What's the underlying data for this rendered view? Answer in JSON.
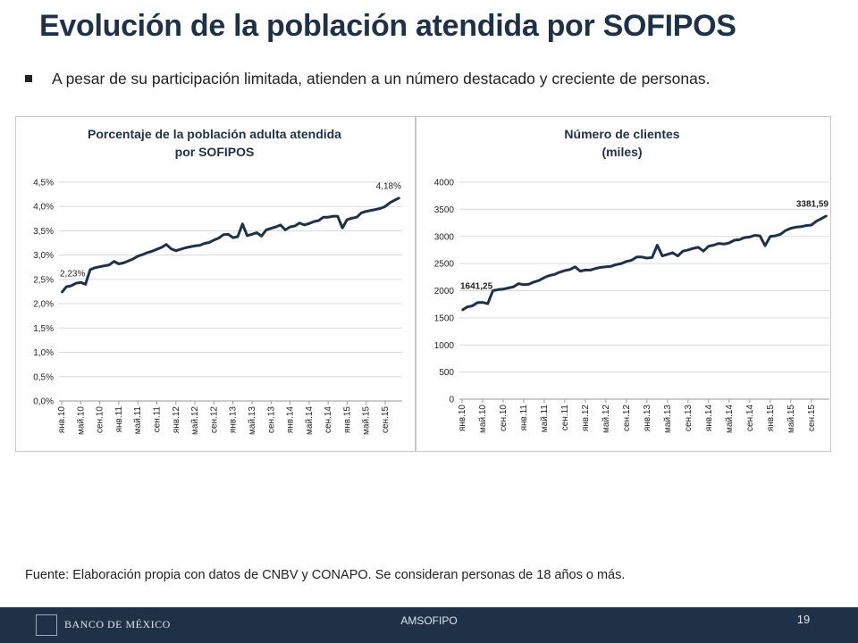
{
  "slide": {
    "title": "Evolución de la población atendida por SOFIPOS",
    "bullet": "A pesar de su participación limitada, atienden a un número destacado y creciente de personas.",
    "source": "Fuente: Elaboración propia con datos de CNBV y CONAPO. Se consideran personas de 18 años o más.",
    "footer_org": "BANCO DE MÉXICO",
    "footer_center": "AMSOFIPO",
    "page_number": "19"
  },
  "chart_data": [
    {
      "type": "line",
      "title": "Porcentaje de la población adulta atendida por SOFIPOS",
      "title_lines": [
        "Porcentaje de la población adulta atendida",
        "por SOFIPOS"
      ],
      "ylim": [
        0,
        4.5
      ],
      "yticks": [
        "0,0%",
        "0,5%",
        "1,0%",
        "1,5%",
        "2,0%",
        "2,5%",
        "3,0%",
        "3,5%",
        "4,0%",
        "4,5%"
      ],
      "xticks": [
        "янв.10",
        "май.10",
        "сен.10",
        "янв.11",
        "май.11",
        "сен.11",
        "янв.12",
        "май.12",
        "сен.12",
        "янв.13",
        "май.13",
        "сен.13",
        "янв.14",
        "май.14",
        "сен.14",
        "янв.15",
        "май.15",
        "сен.15"
      ],
      "annotations": [
        {
          "text": "2,23%",
          "index": 0
        },
        {
          "text": "4,18%",
          "index": 71
        }
      ],
      "series": [
        {
          "color": "#1f3147",
          "values": [
            2.23,
            2.35,
            2.37,
            2.42,
            2.44,
            2.4,
            2.7,
            2.74,
            2.76,
            2.78,
            2.8,
            2.87,
            2.82,
            2.84,
            2.88,
            2.92,
            2.98,
            3.01,
            3.05,
            3.08,
            3.12,
            3.16,
            3.22,
            3.13,
            3.09,
            3.12,
            3.15,
            3.17,
            3.19,
            3.2,
            3.24,
            3.26,
            3.31,
            3.35,
            3.42,
            3.43,
            3.36,
            3.38,
            3.64,
            3.4,
            3.43,
            3.46,
            3.39,
            3.52,
            3.55,
            3.58,
            3.62,
            3.52,
            3.58,
            3.6,
            3.66,
            3.62,
            3.65,
            3.69,
            3.71,
            3.78,
            3.78,
            3.8,
            3.8,
            3.56,
            3.73,
            3.76,
            3.78,
            3.87,
            3.9,
            3.92,
            3.94,
            3.96,
            4.0,
            4.08,
            4.13,
            4.18
          ]
        }
      ]
    },
    {
      "type": "line",
      "title": "Número de clientes (miles)",
      "title_lines": [
        "Número de clientes",
        "(miles)"
      ],
      "ylim": [
        0,
        4000
      ],
      "yticks": [
        "0",
        "500",
        "1000",
        "1500",
        "2000",
        "2500",
        "3000",
        "3500",
        "4000"
      ],
      "xticks": [
        "янв.10",
        "май.10",
        "сен.10",
        "янв.11",
        "май.11",
        "сен.11",
        "янв.12",
        "май.12",
        "сен.12",
        "янв.13",
        "май.13",
        "сен.13",
        "янв.14",
        "май.14",
        "сен.14",
        "янв.15",
        "май.15",
        "сен.15"
      ],
      "annotations": [
        {
          "text": "1641,25",
          "index": 0
        },
        {
          "text": "3381,59",
          "index": 71
        }
      ],
      "series": [
        {
          "color": "#1f3147",
          "values": [
            1641,
            1700,
            1720,
            1780,
            1785,
            1760,
            2000,
            2020,
            2030,
            2050,
            2070,
            2130,
            2110,
            2120,
            2160,
            2190,
            2240,
            2280,
            2300,
            2340,
            2370,
            2390,
            2440,
            2360,
            2380,
            2380,
            2410,
            2430,
            2440,
            2450,
            2480,
            2500,
            2540,
            2560,
            2620,
            2620,
            2600,
            2610,
            2840,
            2640,
            2670,
            2700,
            2640,
            2730,
            2750,
            2780,
            2800,
            2730,
            2820,
            2840,
            2870,
            2860,
            2880,
            2930,
            2940,
            2980,
            2990,
            3020,
            3010,
            2830,
            3000,
            3010,
            3040,
            3110,
            3150,
            3170,
            3180,
            3200,
            3210,
            3280,
            3330,
            3381.59
          ]
        }
      ]
    }
  ]
}
